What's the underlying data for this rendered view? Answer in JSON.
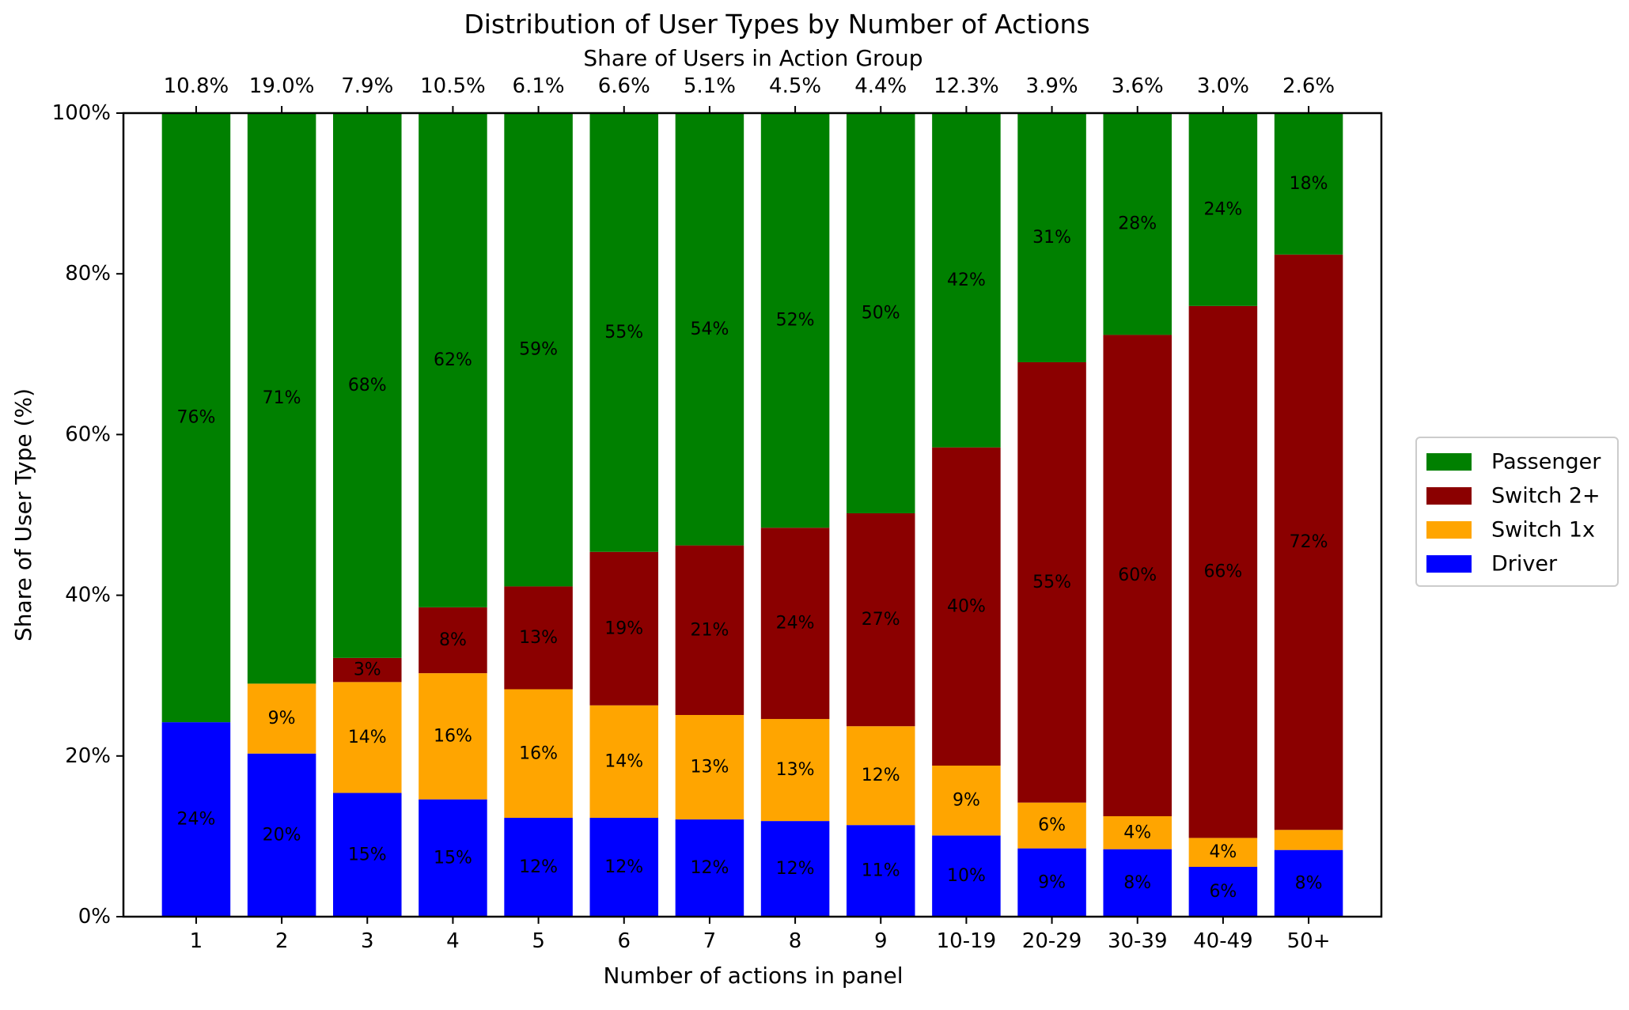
{
  "chart_data": {
    "type": "bar",
    "stacked": true,
    "title": "Distribution of User Types by Number of Actions",
    "top_axis_label": "Share of Users in Action Group",
    "xlabel": "Number of actions in panel",
    "ylabel": "Share of User Type (%)",
    "ylim": [
      0,
      100
    ],
    "yticks": [
      "0%",
      "20%",
      "40%",
      "60%",
      "80%",
      "100%"
    ],
    "categories": [
      "1",
      "2",
      "3",
      "4",
      "5",
      "6",
      "7",
      "8",
      "9",
      "10-19",
      "20-29",
      "30-39",
      "40-49",
      "50+"
    ],
    "group_shares": [
      "10.8%",
      "19.0%",
      "7.9%",
      "10.5%",
      "6.1%",
      "6.6%",
      "5.1%",
      "4.5%",
      "4.4%",
      "12.3%",
      "3.9%",
      "3.6%",
      "3.0%",
      "2.6%"
    ],
    "series": [
      {
        "name": "Driver",
        "color": "#0000ff",
        "values": [
          24.2,
          20.3,
          15.4,
          14.6,
          12.3,
          12.3,
          12.1,
          11.9,
          11.4,
          10.1,
          8.5,
          8.4,
          6.2,
          8.3
        ],
        "labels": [
          "24%",
          "20%",
          "15%",
          "15%",
          "12%",
          "12%",
          "12%",
          "12%",
          "11%",
          "10%",
          "9%",
          "8%",
          "6%",
          "8%"
        ]
      },
      {
        "name": "Switch 1x",
        "color": "#ffa500",
        "values": [
          0,
          8.7,
          13.8,
          15.7,
          16.0,
          14.0,
          13.0,
          12.7,
          12.3,
          8.7,
          5.7,
          4.1,
          3.6,
          2.5
        ],
        "labels": [
          "",
          "9%",
          "14%",
          "16%",
          "16%",
          "14%",
          "13%",
          "13%",
          "12%",
          "9%",
          "6%",
          "4%",
          "4%",
          ""
        ]
      },
      {
        "name": "Switch 2+",
        "color": "#8b0000",
        "values": [
          0,
          0,
          3.0,
          8.2,
          12.8,
          19.1,
          21.1,
          23.8,
          26.5,
          39.6,
          54.8,
          59.9,
          66.2,
          71.6
        ],
        "labels": [
          "",
          "",
          "3%",
          "8%",
          "13%",
          "19%",
          "21%",
          "24%",
          "27%",
          "40%",
          "55%",
          "60%",
          "66%",
          "72%"
        ]
      },
      {
        "name": "Passenger",
        "color": "#008000",
        "values": [
          75.8,
          71.0,
          67.8,
          61.5,
          58.9,
          54.6,
          53.8,
          51.6,
          49.8,
          41.6,
          31.0,
          27.6,
          24.0,
          17.6
        ],
        "labels": [
          "76%",
          "71%",
          "68%",
          "62%",
          "59%",
          "55%",
          "54%",
          "52%",
          "50%",
          "42%",
          "31%",
          "28%",
          "24%",
          "18%"
        ]
      }
    ],
    "legend": {
      "placement": "center-right",
      "order": [
        "Passenger",
        "Switch 2+",
        "Switch 1x",
        "Driver"
      ]
    },
    "grid": false
  }
}
